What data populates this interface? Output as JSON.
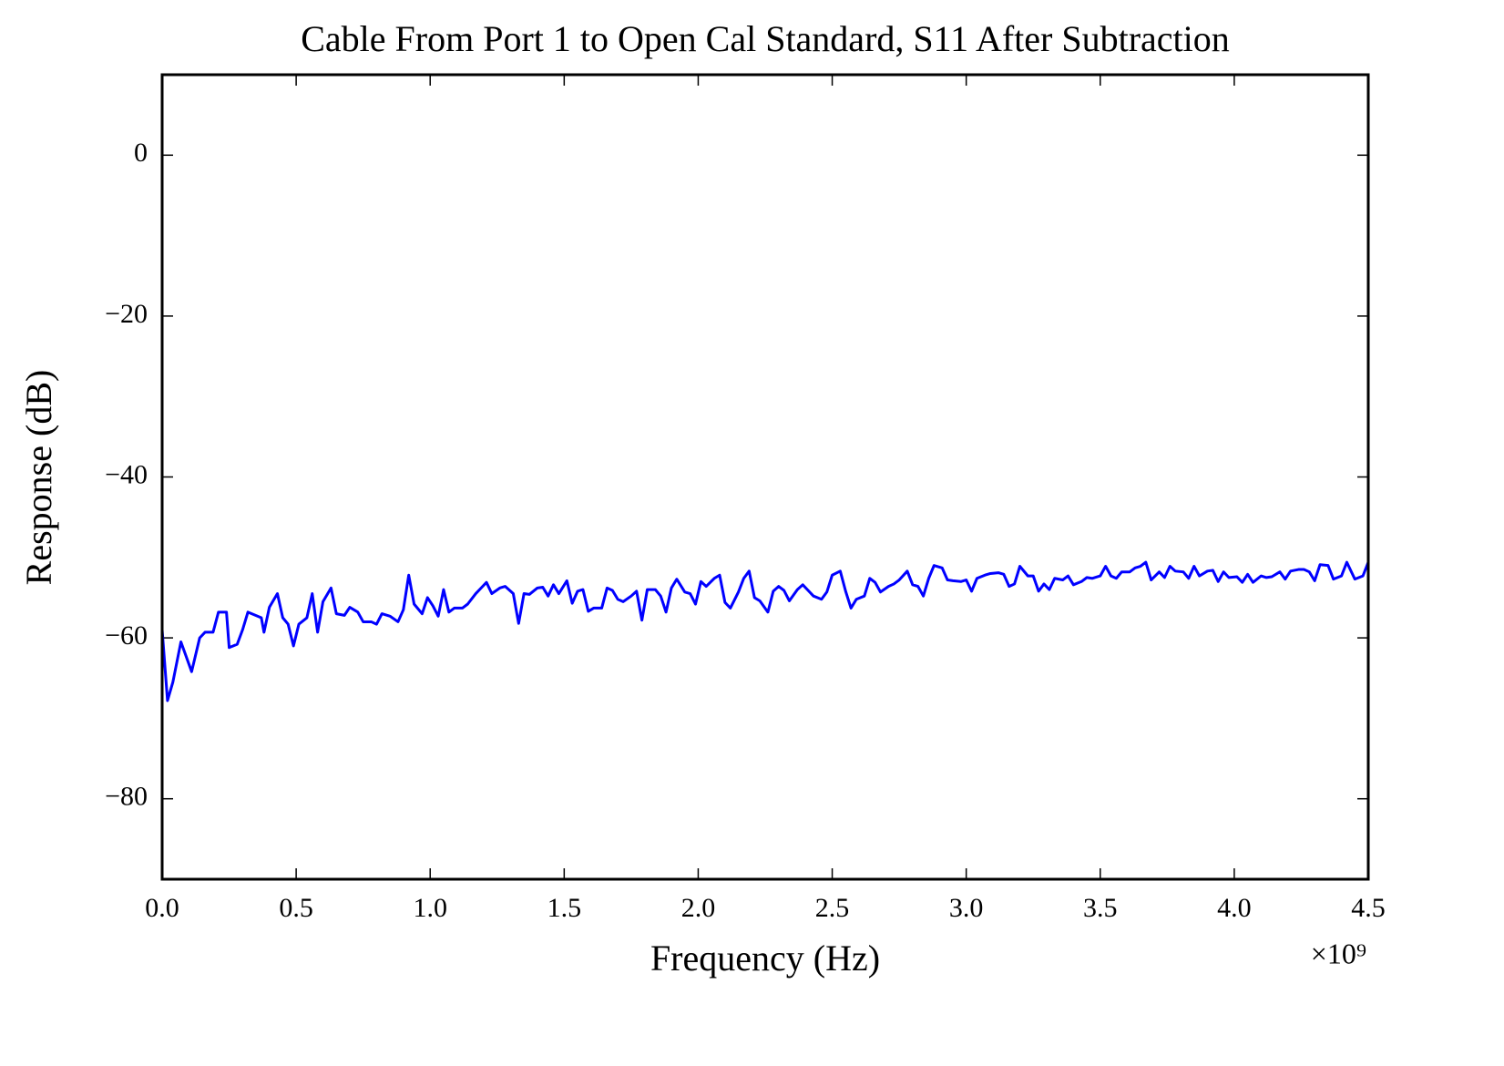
{
  "chart_data": {
    "type": "line",
    "title": "Cable From Port 1 to Open Cal Standard, S11 After Subtraction",
    "x_label": "Frequency (Hz)",
    "y_label": "Response (dB)",
    "x_offset_label": "×10⁹",
    "color": "#0000ff",
    "xlim": [
      0,
      4.5
    ],
    "ylim": [
      -90,
      10
    ],
    "xticks": [
      {
        "value": 0,
        "label": "0.0"
      },
      0.5,
      {
        "value": 1,
        "label": "1.0"
      },
      1.5,
      {
        "value": 2,
        "label": "2.0"
      },
      2.5,
      {
        "value": 3,
        "label": "3.0"
      },
      3.5,
      {
        "value": 4,
        "label": "4.0"
      },
      4.5
    ],
    "yticks": [
      {
        "value": -80,
        "label": "−80"
      },
      {
        "value": -60,
        "label": "−60"
      },
      {
        "value": -40,
        "label": "−40"
      },
      {
        "value": -20,
        "label": "−20"
      },
      0
    ],
    "x": [
      0.0,
      0.02,
      0.04,
      0.07,
      0.11,
      0.14,
      0.16,
      0.19,
      0.21,
      0.24,
      0.25,
      0.28,
      0.3,
      0.32,
      0.37,
      0.38,
      0.4,
      0.43,
      0.45,
      0.47,
      0.49,
      0.51,
      0.54,
      0.56,
      0.58,
      0.6,
      0.63,
      0.65,
      0.68,
      0.7,
      0.73,
      0.75,
      0.78,
      0.8,
      0.82,
      0.85,
      0.88,
      0.9,
      0.92,
      0.94,
      0.97,
      0.99,
      1.01,
      1.03,
      1.05,
      1.07,
      1.09,
      1.12,
      1.14,
      1.17,
      1.19,
      1.21,
      1.23,
      1.26,
      1.28,
      1.31,
      1.33,
      1.35,
      1.37,
      1.4,
      1.42,
      1.44,
      1.46,
      1.48,
      1.51,
      1.53,
      1.55,
      1.57,
      1.59,
      1.61,
      1.64,
      1.66,
      1.68,
      1.7,
      1.72,
      1.75,
      1.77,
      1.79,
      1.81,
      1.84,
      1.86,
      1.88,
      1.9,
      1.92,
      1.95,
      1.97,
      1.99,
      2.01,
      2.03,
      2.06,
      2.08,
      2.1,
      2.12,
      2.15,
      2.17,
      2.19,
      2.21,
      2.23,
      2.26,
      2.28,
      2.3,
      2.32,
      2.34,
      2.37,
      2.39,
      2.41,
      2.43,
      2.46,
      2.48,
      2.5,
      2.53,
      2.55,
      2.57,
      2.59,
      2.62,
      2.64,
      2.66,
      2.68,
      2.71,
      2.73,
      2.75,
      2.78,
      2.8,
      2.82,
      2.84,
      2.86,
      2.88,
      2.91,
      2.93,
      2.95,
      2.98,
      3.0,
      3.02,
      3.04,
      3.07,
      3.09,
      3.12,
      3.14,
      3.16,
      3.18,
      3.2,
      3.23,
      3.25,
      3.27,
      3.29,
      3.31,
      3.33,
      3.36,
      3.38,
      3.4,
      3.43,
      3.45,
      3.47,
      3.5,
      3.52,
      3.54,
      3.56,
      3.58,
      3.61,
      3.63,
      3.65,
      3.67,
      3.69,
      3.72,
      3.74,
      3.76,
      3.78,
      3.81,
      3.83,
      3.85,
      3.87,
      3.9,
      3.92,
      3.94,
      3.96,
      3.98,
      4.01,
      4.03,
      4.05,
      4.07,
      4.1,
      4.12,
      4.14,
      4.17,
      4.19,
      4.21,
      4.24,
      4.26,
      4.28,
      4.3,
      4.32,
      4.35,
      4.37,
      4.4,
      4.42,
      4.45,
      4.48,
      4.5
    ],
    "values": [
      -59,
      -67.8,
      -65.5,
      -60.5,
      -64.2,
      -60,
      -59.3,
      -59.3,
      -56.8,
      -56.8,
      -61.2,
      -60.8,
      -59,
      -56.8,
      -57.5,
      -59.3,
      -56.2,
      -54.5,
      -57.5,
      -58.3,
      -61,
      -58.3,
      -57.5,
      -54.5,
      -59.3,
      -55.5,
      -53.8,
      -57,
      -57.2,
      -56.2,
      -56.8,
      -58,
      -58,
      -58.3,
      -57,
      -57.3,
      -58,
      -56.5,
      -52.2,
      -55.8,
      -57,
      -55,
      -56,
      -57.3,
      -54,
      -56.8,
      -56.3,
      -56.3,
      -55.8,
      -54.5,
      -53.8,
      -53.1,
      -54.5,
      -53.8,
      -53.6,
      -54.5,
      -58.2,
      -54.5,
      -54.6,
      -53.8,
      -53.7,
      -54.8,
      -53.4,
      -54.5,
      -52.9,
      -55.7,
      -54.2,
      -54,
      -56.7,
      -56.3,
      -56.3,
      -53.8,
      -54.1,
      -55.2,
      -55.5,
      -54.8,
      -54.2,
      -57.8,
      -54,
      -54,
      -54.8,
      -56.8,
      -53.8,
      -52.7,
      -54.3,
      -54.5,
      -55.8,
      -53,
      -53.6,
      -52.6,
      -52.2,
      -55.6,
      -56.3,
      -54.3,
      -52.6,
      -51.7,
      -55,
      -55.4,
      -56.8,
      -54.2,
      -53.6,
      -54.1,
      -55.4,
      -54,
      -53.4,
      -54.1,
      -54.8,
      -55.2,
      -54.3,
      -52.2,
      -51.7,
      -54.2,
      -56.3,
      -55.2,
      -54.8,
      -52.6,
      -53.1,
      -54.3,
      -53.6,
      -53.3,
      -52.8,
      -51.7,
      -53.4,
      -53.6,
      -54.8,
      -52.6,
      -51,
      -51.3,
      -52.8,
      -52.9,
      -53,
      -52.8,
      -54.2,
      -52.6,
      -52.2,
      -52,
      -51.9,
      -52.1,
      -53.6,
      -53.3,
      -51.1,
      -52.3,
      -52.3,
      -54.2,
      -53.3,
      -54,
      -52.6,
      -52.8,
      -52.3,
      -53.4,
      -53,
      -52.5,
      -52.6,
      -52.3,
      -51.1,
      -52.3,
      -52.6,
      -51.8,
      -51.8,
      -51.3,
      -51.1,
      -50.6,
      -52.8,
      -51.8,
      -52.5,
      -51.1,
      -51.7,
      -51.8,
      -52.6,
      -51.1,
      -52.3,
      -51.7,
      -51.6,
      -53,
      -51.8,
      -52.5,
      -52.4,
      -53.1,
      -52.1,
      -53.1,
      -52.3,
      -52.5,
      -52.4,
      -51.8,
      -52.7,
      -51.7,
      -51.5,
      -51.5,
      -51.8,
      -52.9,
      -50.9,
      -51,
      -52.7,
      -52.3,
      -50.6,
      -52.7,
      -52.3,
      -50.6
    ]
  }
}
